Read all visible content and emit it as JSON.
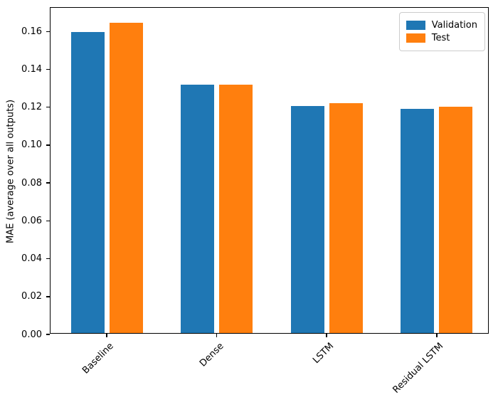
{
  "chart_data": {
    "type": "bar",
    "title": "",
    "xlabel": "",
    "ylabel": "MAE (average over all outputs)",
    "categories": [
      "Baseline",
      "Dense",
      "LSTM",
      "Residual LSTM"
    ],
    "series": [
      {
        "name": "Validation",
        "color": "#1f77b4",
        "values": [
          0.159,
          0.131,
          0.12,
          0.1185
        ]
      },
      {
        "name": "Test",
        "color": "#ff7f0e",
        "values": [
          0.164,
          0.131,
          0.1215,
          0.1195
        ]
      }
    ],
    "ylim": [
      0,
      0.1725
    ],
    "yticks": [
      0.0,
      0.02,
      0.04,
      0.06,
      0.08,
      0.1,
      0.12,
      0.14,
      0.16
    ],
    "ytick_decimals": 2,
    "xtick_rotation": 45,
    "grid": false,
    "legend_position": "upper right",
    "legend": [
      "Validation",
      "Test"
    ]
  }
}
